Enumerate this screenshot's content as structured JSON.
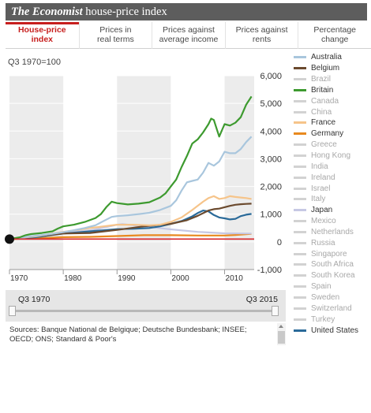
{
  "header": {
    "brand": "The Economist",
    "title": "house-price index"
  },
  "tabs": [
    {
      "line1": "House-price",
      "line2": "index",
      "active": true
    },
    {
      "line1": "Prices in",
      "line2": "real terms",
      "active": false
    },
    {
      "line1": "Prices against",
      "line2": "average income",
      "active": false
    },
    {
      "line1": "Prices against",
      "line2": "rents",
      "active": false
    },
    {
      "line1": "Percentage",
      "line2": "change",
      "active": false
    }
  ],
  "units_label": "Q3 1970=100",
  "range": {
    "start": "Q3 1970",
    "end": "Q3 2015"
  },
  "sources": "Sources: Banque National de Belgique; Deutsche Bundesbank; INSEE; OECD; ONS; Standard & Poor's",
  "legend": [
    {
      "name": "Australia",
      "color": "#a9c6dd",
      "active": true
    },
    {
      "name": "Belgium",
      "color": "#6b4a2e",
      "active": true
    },
    {
      "name": "Brazil",
      "color": "#d2d2d2",
      "active": false
    },
    {
      "name": "Britain",
      "color": "#3d9a2f",
      "active": true
    },
    {
      "name": "Canada",
      "color": "#d2d2d2",
      "active": false
    },
    {
      "name": "China",
      "color": "#d2d2d2",
      "active": false
    },
    {
      "name": "France",
      "color": "#f6c48a",
      "active": true
    },
    {
      "name": "Germany",
      "color": "#e8891f",
      "active": true
    },
    {
      "name": "Greece",
      "color": "#d2d2d2",
      "active": false
    },
    {
      "name": "Hong Kong",
      "color": "#d2d2d2",
      "active": false
    },
    {
      "name": "India",
      "color": "#d2d2d2",
      "active": false
    },
    {
      "name": "Ireland",
      "color": "#d2d2d2",
      "active": false
    },
    {
      "name": "Israel",
      "color": "#d2d2d2",
      "active": false
    },
    {
      "name": "Italy",
      "color": "#d2d2d2",
      "active": false
    },
    {
      "name": "Japan",
      "color": "#c6c8e4",
      "active": true
    },
    {
      "name": "Mexico",
      "color": "#d2d2d2",
      "active": false
    },
    {
      "name": "Netherlands",
      "color": "#d2d2d2",
      "active": false
    },
    {
      "name": "Russia",
      "color": "#d2d2d2",
      "active": false
    },
    {
      "name": "Singapore",
      "color": "#d2d2d2",
      "active": false
    },
    {
      "name": "South Africa",
      "color": "#d2d2d2",
      "active": false
    },
    {
      "name": "South Korea",
      "color": "#d2d2d2",
      "active": false
    },
    {
      "name": "Spain",
      "color": "#d2d2d2",
      "active": false
    },
    {
      "name": "Sweden",
      "color": "#d2d2d2",
      "active": false
    },
    {
      "name": "Switzerland",
      "color": "#d2d2d2",
      "active": false
    },
    {
      "name": "Turkey",
      "color": "#d2d2d2",
      "active": false
    },
    {
      "name": "United States",
      "color": "#2a6a99",
      "active": true
    }
  ],
  "chart_data": {
    "type": "line",
    "ylim": [
      -1000,
      6000
    ],
    "xlim": [
      1970,
      2015.5
    ],
    "yticks": [
      -1000,
      0,
      1000,
      2000,
      3000,
      4000,
      5000,
      6000
    ],
    "ytick_labels": [
      "-1,000",
      "0",
      "1,000",
      "2,000",
      "3,000",
      "4,000",
      "5,000",
      "6,000"
    ],
    "xticks": [
      1970,
      1980,
      1990,
      2000,
      2010
    ],
    "xtick_labels": [
      "1970",
      "1980",
      "1990",
      "2000",
      "2010"
    ],
    "baseline": 100,
    "shaded_decades": [
      [
        1970,
        1980
      ],
      [
        1990,
        2000
      ],
      [
        2010,
        2015.5
      ]
    ],
    "series": [
      {
        "name": "Britain",
        "color": "#3d9a2f",
        "x": [
          1970,
          1972,
          1973,
          1974,
          1976,
          1978,
          1979,
          1980,
          1982,
          1984,
          1986,
          1987,
          1988,
          1989,
          1990,
          1992,
          1994,
          1996,
          1998,
          1999,
          2000,
          2001,
          2002,
          2003,
          2004,
          2005,
          2006,
          2007,
          2007.5,
          2008,
          2008.5,
          2009,
          2010,
          2011,
          2012,
          2013,
          2014,
          2015
        ],
        "y": [
          100,
          170,
          240,
          280,
          320,
          380,
          480,
          560,
          620,
          720,
          860,
          1000,
          1250,
          1450,
          1400,
          1350,
          1380,
          1430,
          1600,
          1750,
          2000,
          2250,
          2700,
          3100,
          3550,
          3700,
          3950,
          4250,
          4450,
          4400,
          4100,
          3800,
          4250,
          4200,
          4300,
          4500,
          4950,
          5250
        ]
      },
      {
        "name": "Australia",
        "color": "#a9c6dd",
        "x": [
          1970,
          1972,
          1974,
          1976,
          1978,
          1980,
          1982,
          1984,
          1986,
          1988,
          1989,
          1990,
          1992,
          1994,
          1996,
          1998,
          2000,
          2001,
          2002,
          2003,
          2004,
          2005,
          2006,
          2007,
          2008,
          2009,
          2010,
          2011,
          2012,
          2013,
          2014,
          2015
        ],
        "y": [
          100,
          140,
          200,
          240,
          290,
          350,
          420,
          500,
          600,
          800,
          900,
          930,
          960,
          1000,
          1050,
          1150,
          1300,
          1500,
          1850,
          2150,
          2200,
          2250,
          2500,
          2850,
          2750,
          2900,
          3250,
          3200,
          3200,
          3350,
          3600,
          3800
        ]
      },
      {
        "name": "France",
        "color": "#f6c48a",
        "x": [
          1970,
          1975,
          1980,
          1985,
          1990,
          1993,
          1996,
          1998,
          2000,
          2002,
          2004,
          2006,
          2007,
          2008,
          2009,
          2010,
          2011,
          2012,
          2013,
          2014,
          2015
        ],
        "y": [
          100,
          200,
          360,
          500,
          620,
          620,
          600,
          620,
          720,
          880,
          1150,
          1450,
          1580,
          1650,
          1550,
          1580,
          1650,
          1620,
          1600,
          1580,
          1550
        ]
      },
      {
        "name": "Belgium",
        "color": "#6b4a2e",
        "x": [
          1970,
          1975,
          1980,
          1985,
          1990,
          1995,
          2000,
          2003,
          2005,
          2007,
          2008,
          2009,
          2010,
          2011,
          2012,
          2013,
          2014,
          2015
        ],
        "y": [
          100,
          200,
          300,
          320,
          430,
          560,
          650,
          780,
          940,
          1130,
          1180,
          1200,
          1250,
          1300,
          1340,
          1360,
          1370,
          1380
        ]
      },
      {
        "name": "United States",
        "color": "#2a6a99",
        "x": [
          1970,
          1975,
          1980,
          1985,
          1990,
          1993,
          1996,
          1998,
          2000,
          2002,
          2004,
          2005,
          2006,
          2007,
          2008,
          2009,
          2010,
          2011,
          2012,
          2013,
          2014,
          2015
        ],
        "y": [
          100,
          170,
          300,
          380,
          460,
          470,
          500,
          560,
          650,
          750,
          920,
          1040,
          1130,
          1100,
          970,
          880,
          850,
          810,
          830,
          930,
          980,
          1010
        ]
      },
      {
        "name": "Japan",
        "color": "#c6c8e4",
        "x": [
          1970,
          1975,
          1980,
          1985,
          1988,
          1990,
          1991,
          1995,
          2000,
          2005,
          2010,
          2015
        ],
        "y": [
          100,
          220,
          330,
          420,
          530,
          620,
          640,
          560,
          450,
          360,
          310,
          300
        ]
      },
      {
        "name": "Germany",
        "color": "#e8891f",
        "x": [
          1970,
          1975,
          1980,
          1985,
          1990,
          1995,
          2000,
          2005,
          2010,
          2012,
          2015
        ],
        "y": [
          100,
          130,
          170,
          180,
          210,
          240,
          240,
          230,
          230,
          250,
          290
        ]
      }
    ]
  }
}
